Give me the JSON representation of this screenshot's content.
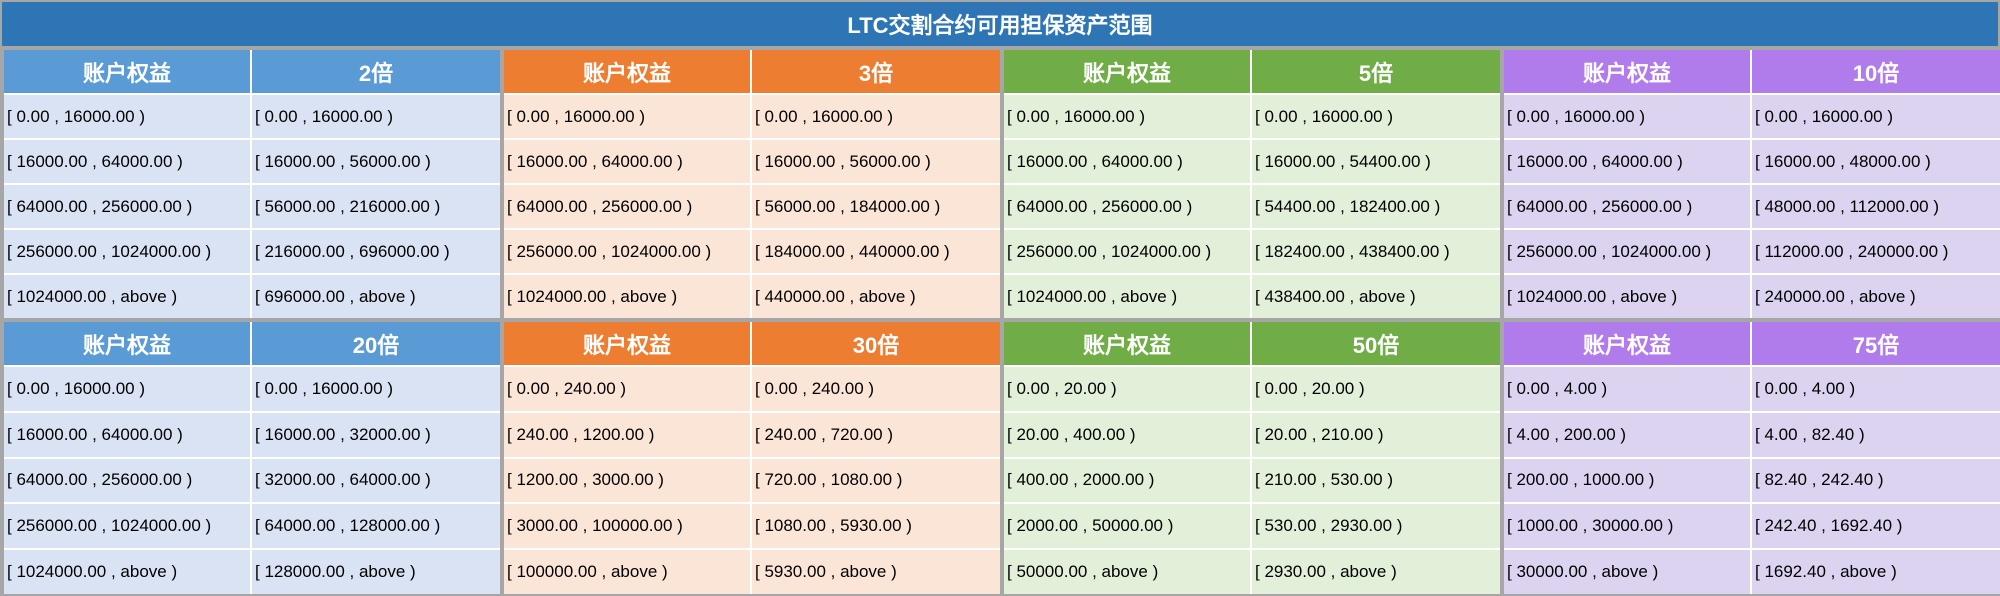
{
  "title": "LTC交割合约可用担保资产范围",
  "colors": {
    "title_bg": "#2e75b6",
    "blue_header": "#5b9bd5",
    "blue_cell": "#dae3f3",
    "orange_header": "#ed7d31",
    "orange_cell": "#fbe5d6",
    "green_header": "#70ad47",
    "green_cell": "#e2f0d9",
    "purple_header": "#b07ceb",
    "purple_cell": "#dcd3f0"
  },
  "tables": [
    {
      "theme": "blue",
      "equity_header": "账户权益",
      "leverage": "2倍",
      "rows": [
        [
          "[ 0.00 , 16000.00 )",
          "[ 0.00 , 16000.00 )"
        ],
        [
          "[ 16000.00 , 64000.00 )",
          "[ 16000.00 , 56000.00 )"
        ],
        [
          "[ 64000.00 , 256000.00 )",
          "[ 56000.00 , 216000.00 )"
        ],
        [
          "[ 256000.00 , 1024000.00 )",
          "[ 216000.00 , 696000.00 )"
        ],
        [
          "[ 1024000.00 , above )",
          "[ 696000.00 , above )"
        ]
      ]
    },
    {
      "theme": "orange",
      "equity_header": "账户权益",
      "leverage": "3倍",
      "rows": [
        [
          "[ 0.00 , 16000.00 )",
          "[ 0.00 , 16000.00 )"
        ],
        [
          "[ 16000.00 , 64000.00 )",
          "[ 16000.00 , 56000.00 )"
        ],
        [
          "[ 64000.00 , 256000.00 )",
          "[ 56000.00 , 184000.00 )"
        ],
        [
          "[ 256000.00 , 1024000.00 )",
          "[ 184000.00 , 440000.00 )"
        ],
        [
          "[ 1024000.00 , above )",
          "[ 440000.00 , above )"
        ]
      ]
    },
    {
      "theme": "green",
      "equity_header": "账户权益",
      "leverage": "5倍",
      "rows": [
        [
          "[ 0.00 , 16000.00 )",
          "[ 0.00 , 16000.00 )"
        ],
        [
          "[ 16000.00 , 64000.00 )",
          "[ 16000.00 , 54400.00 )"
        ],
        [
          "[ 64000.00 , 256000.00 )",
          "[ 54400.00 , 182400.00 )"
        ],
        [
          "[ 256000.00 , 1024000.00 )",
          "[ 182400.00 , 438400.00 )"
        ],
        [
          "[ 1024000.00 , above )",
          "[ 438400.00 , above )"
        ]
      ]
    },
    {
      "theme": "purple",
      "equity_header": "账户权益",
      "leverage": "10倍",
      "rows": [
        [
          "[ 0.00 , 16000.00 )",
          "[ 0.00 , 16000.00 )"
        ],
        [
          "[ 16000.00 , 64000.00 )",
          "[ 16000.00 , 48000.00 )"
        ],
        [
          "[ 64000.00 , 256000.00 )",
          "[ 48000.00 , 112000.00 )"
        ],
        [
          "[ 256000.00 , 1024000.00 )",
          "[ 112000.00 , 240000.00 )"
        ],
        [
          "[ 1024000.00 , above )",
          "[ 240000.00 , above )"
        ]
      ]
    },
    {
      "theme": "blue",
      "equity_header": "账户权益",
      "leverage": "20倍",
      "rows": [
        [
          "[ 0.00 , 16000.00 )",
          "[ 0.00 , 16000.00 )"
        ],
        [
          "[ 16000.00 , 64000.00 )",
          "[ 16000.00 , 32000.00 )"
        ],
        [
          "[ 64000.00 , 256000.00 )",
          "[ 32000.00 , 64000.00 )"
        ],
        [
          "[ 256000.00 , 1024000.00 )",
          "[ 64000.00 , 128000.00 )"
        ],
        [
          "[ 1024000.00 , above )",
          "[ 128000.00 , above )"
        ]
      ]
    },
    {
      "theme": "orange",
      "equity_header": "账户权益",
      "leverage": "30倍",
      "rows": [
        [
          "[ 0.00 , 240.00 )",
          "[ 0.00 , 240.00 )"
        ],
        [
          "[ 240.00 , 1200.00 )",
          "[ 240.00 , 720.00 )"
        ],
        [
          "[ 1200.00 , 3000.00 )",
          "[ 720.00 , 1080.00 )"
        ],
        [
          "[ 3000.00 , 100000.00 )",
          "[ 1080.00 , 5930.00 )"
        ],
        [
          "[ 100000.00 , above )",
          "[ 5930.00 , above )"
        ]
      ]
    },
    {
      "theme": "green",
      "equity_header": "账户权益",
      "leverage": "50倍",
      "rows": [
        [
          "[ 0.00 , 20.00 )",
          "[ 0.00 , 20.00 )"
        ],
        [
          "[ 20.00 , 400.00 )",
          "[ 20.00 , 210.00 )"
        ],
        [
          "[ 400.00 , 2000.00 )",
          "[ 210.00 , 530.00 )"
        ],
        [
          "[ 2000.00 , 50000.00 )",
          "[ 530.00 , 2930.00 )"
        ],
        [
          "[ 50000.00 , above )",
          "[ 2930.00 , above )"
        ]
      ]
    },
    {
      "theme": "purple",
      "equity_header": "账户权益",
      "leverage": "75倍",
      "rows": [
        [
          "[ 0.00 , 4.00 )",
          "[ 0.00 , 4.00 )"
        ],
        [
          "[ 4.00 , 200.00 )",
          "[ 4.00 , 82.40 )"
        ],
        [
          "[ 200.00 , 1000.00 )",
          "[ 82.40 , 242.40 )"
        ],
        [
          "[ 1000.00 , 30000.00 )",
          "[ 242.40 , 1692.40 )"
        ],
        [
          "[ 30000.00 , above )",
          "[ 1692.40 , above )"
        ]
      ]
    }
  ]
}
